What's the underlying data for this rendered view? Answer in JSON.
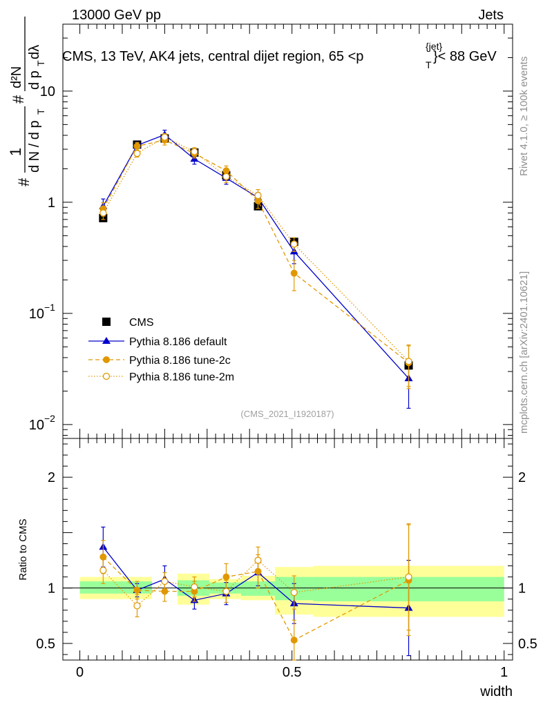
{
  "header": {
    "energy_label": "13000 GeV pp",
    "category_label": "Jets",
    "side_top": "Rivet 4.1.0, ≥ 100k events",
    "side_bottom": "mcplots.cern.ch [arXiv:2401.10621]"
  },
  "chart_data": [
    {
      "type": "scatter",
      "panel": "main",
      "title": "CMS, 13 TeV, AK4 jets, central dijet region, 65 <p",
      "title_super": "{jet}",
      "title_sub": "T",
      "title_tail": "}< 88 GeV",
      "watermark": "(CMS_2021_I1920187)",
      "yscale": "log",
      "ylim": [
        0.0075,
        40
      ],
      "xlim": [
        -0.04,
        1.02
      ],
      "ylabel_parts": {
        "hash": "#",
        "one": "1",
        "den": "d N / d p",
        "den_sub": "T",
        "num2": "#",
        "frac2_num": "d²N",
        "frac2_den": "d p",
        "frac2_den_sub": "T",
        "frac2_den_tail": " dλ"
      },
      "yticks": [
        {
          "v": 0.01,
          "base": "10",
          "exp": "−2"
        },
        {
          "v": 0.1,
          "base": "10",
          "exp": "−1"
        },
        {
          "v": 1,
          "base": "1",
          "exp": ""
        },
        {
          "v": 10,
          "base": "10",
          "exp": ""
        }
      ],
      "legend": {
        "position": "lower-left",
        "entries": [
          {
            "key": "cms",
            "label": "CMS"
          },
          {
            "key": "def",
            "label": "Pythia 8.186 default"
          },
          {
            "key": "t2c",
            "label": "Pythia 8.186 tune-2c"
          },
          {
            "key": "t2m",
            "label": "Pythia 8.186 tune-2m"
          }
        ]
      },
      "series": [
        {
          "key": "cms",
          "name": "CMS",
          "color": "#000000",
          "marker": "square",
          "line": "none",
          "x": [
            0.055,
            0.135,
            0.2,
            0.27,
            0.345,
            0.42,
            0.505,
            0.775
          ],
          "y": [
            0.72,
            3.3,
            3.75,
            2.8,
            1.75,
            0.92,
            0.44,
            0.034
          ]
        },
        {
          "key": "def",
          "name": "Pythia 8.186 default",
          "color": "#0000cc",
          "marker": "triangle",
          "line": "solid",
          "x": [
            0.055,
            0.135,
            0.2,
            0.27,
            0.345,
            0.42,
            0.505,
            0.775
          ],
          "y": [
            0.92,
            3.25,
            4.05,
            2.45,
            1.65,
            1.1,
            0.36,
            0.026
          ],
          "err": [
            0.15,
            0.2,
            0.4,
            0.25,
            0.2,
            0.12,
            0.08,
            0.012
          ]
        },
        {
          "key": "t2c",
          "name": "Pythia 8.186 tune-2c",
          "color": "#e09800",
          "marker": "circle",
          "line": "dashed",
          "x": [
            0.055,
            0.135,
            0.2,
            0.27,
            0.345,
            0.42,
            0.505,
            0.775
          ],
          "y": [
            0.87,
            3.2,
            3.62,
            2.75,
            1.92,
            1.03,
            0.23,
            0.036
          ],
          "err": [
            0.12,
            0.25,
            0.35,
            0.25,
            0.2,
            0.15,
            0.07,
            0.015
          ]
        },
        {
          "key": "t2m",
          "name": "Pythia 8.186 tune-2m",
          "color": "#e09800",
          "marker": "open-circle",
          "line": "dotted",
          "x": [
            0.055,
            0.135,
            0.2,
            0.27,
            0.345,
            0.42,
            0.505,
            0.775
          ],
          "y": [
            0.8,
            2.75,
            3.85,
            2.85,
            1.7,
            1.15,
            0.42,
            0.037
          ],
          "err": [
            0.1,
            0.2,
            0.3,
            0.25,
            0.2,
            0.15,
            0.06,
            0.015
          ]
        }
      ]
    },
    {
      "type": "scatter",
      "panel": "ratio",
      "ylabel": "Ratio to CMS",
      "xlabel": "width",
      "ylim": [
        0.35,
        2.35
      ],
      "xlim": [
        -0.04,
        1.02
      ],
      "xticks": [
        {
          "v": 0,
          "label": "0"
        },
        {
          "v": 0.5,
          "label": "0.5"
        },
        {
          "v": 1,
          "label": "1"
        }
      ],
      "yticks": [
        {
          "v": 0.5,
          "label": "0.5"
        },
        {
          "v": 1,
          "label": "1"
        },
        {
          "v": 2,
          "label": "2"
        }
      ],
      "bands": [
        {
          "x": [
            0.0,
            0.17
          ],
          "inner": [
            0.95,
            1.06
          ],
          "outer": [
            0.9,
            1.1
          ]
        },
        {
          "x": [
            0.23,
            0.305
          ],
          "inner": [
            0.93,
            1.07
          ],
          "outer": [
            0.85,
            1.13
          ]
        },
        {
          "x": [
            0.305,
            0.38
          ],
          "inner": [
            0.95,
            1.05
          ],
          "outer": [
            0.9,
            1.08
          ]
        },
        {
          "x": [
            0.38,
            0.46
          ],
          "inner": [
            0.93,
            1.06
          ],
          "outer": [
            0.89,
            1.11
          ]
        },
        {
          "x": [
            0.46,
            0.55
          ],
          "inner": [
            0.89,
            1.1
          ],
          "outer": [
            0.76,
            1.19
          ]
        },
        {
          "x": [
            0.55,
            1.0
          ],
          "inner": [
            0.88,
            1.1
          ],
          "outer": [
            0.74,
            1.2
          ]
        }
      ],
      "series": [
        {
          "key": "def",
          "name": "Pythia 8.186 default",
          "color": "#0000cc",
          "marker": "triangle",
          "line": "solid",
          "x": [
            0.055,
            0.135,
            0.2,
            0.27,
            0.345,
            0.42,
            0.505,
            0.775
          ],
          "y": [
            1.37,
            0.98,
            1.08,
            0.89,
            0.95,
            1.14,
            0.86,
            0.82
          ],
          "err": [
            0.18,
            0.06,
            0.12,
            0.08,
            0.1,
            0.12,
            0.18,
            0.43
          ]
        },
        {
          "key": "t2c",
          "name": "Pythia 8.186 tune-2c",
          "color": "#e09800",
          "marker": "circle",
          "line": "dashed",
          "x": [
            0.055,
            0.135,
            0.2,
            0.27,
            0.345,
            0.42,
            0.505,
            0.775
          ],
          "y": [
            1.28,
            0.98,
            0.97,
            0.97,
            1.1,
            1.15,
            0.53,
            1.07
          ],
          "err": [
            0.15,
            0.08,
            0.09,
            0.09,
            0.12,
            0.15,
            0.18,
            0.5
          ]
        },
        {
          "key": "t2m",
          "name": "Pythia 8.186 tune-2m",
          "color": "#e09800",
          "marker": "open-circle",
          "line": "dotted",
          "x": [
            0.055,
            0.135,
            0.2,
            0.27,
            0.345,
            0.42,
            0.505,
            0.775
          ],
          "y": [
            1.16,
            0.84,
            1.06,
            1.01,
            0.97,
            1.25,
            0.96,
            1.1
          ],
          "err": [
            0.12,
            0.1,
            0.08,
            0.09,
            0.1,
            0.12,
            0.15,
            0.48
          ]
        }
      ]
    }
  ]
}
